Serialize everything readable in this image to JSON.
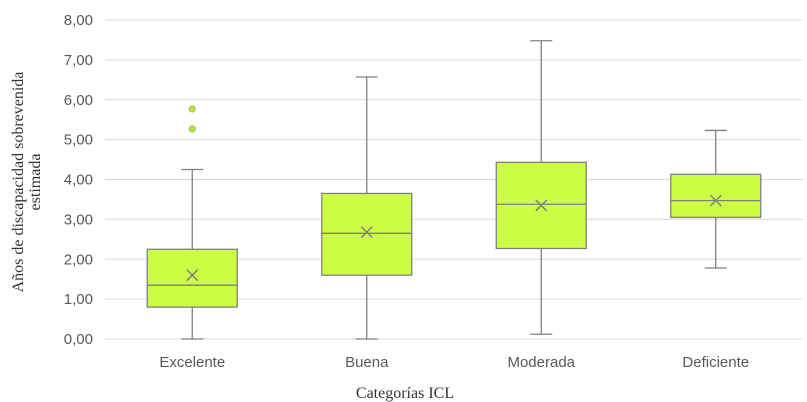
{
  "chart_data": {
    "type": "box",
    "xlabel": "Categorías ICL",
    "ylabel_lines": [
      "Años de discapacidad sobrevenida",
      "estimada"
    ],
    "yticks": [
      "0,00",
      "1,00",
      "2,00",
      "3,00",
      "4,00",
      "5,00",
      "6,00",
      "7,00",
      "8,00"
    ],
    "ylim": [
      0,
      8
    ],
    "grid": true,
    "colors": {
      "box_fill": "#ccff44",
      "line": "#7f7f7f",
      "grid": "#d9d9d9",
      "outlier": "#b8e04a"
    },
    "categories": [
      "Excelente",
      "Buena",
      "Moderada",
      "Deficiente"
    ],
    "boxes": [
      {
        "min": 0.0,
        "q1": 0.8,
        "median": 1.35,
        "q3": 2.25,
        "max": 4.25,
        "mean": 1.6,
        "outliers": [
          5.27,
          5.77
        ]
      },
      {
        "min": 0.0,
        "q1": 1.6,
        "median": 2.65,
        "q3": 3.65,
        "max": 6.57,
        "mean": 2.68,
        "outliers": []
      },
      {
        "min": 0.12,
        "q1": 2.27,
        "median": 3.38,
        "q3": 4.43,
        "max": 7.48,
        "mean": 3.35,
        "outliers": []
      },
      {
        "min": 1.78,
        "q1": 3.05,
        "median": 3.47,
        "q3": 4.13,
        "max": 5.23,
        "mean": 3.47,
        "outliers": []
      }
    ]
  }
}
